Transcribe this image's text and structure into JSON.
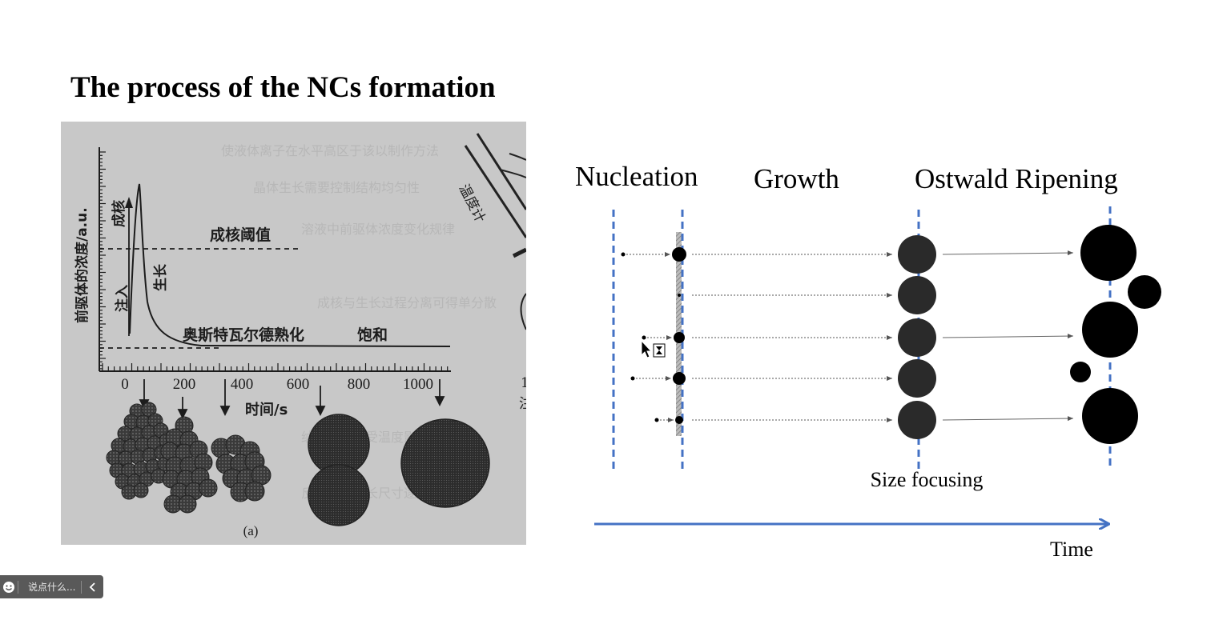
{
  "slide": {
    "title": "The process of the NCs formation"
  },
  "photo": {
    "y_axis_label": "前驱体的浓度/a.u.",
    "x_axis_label": "时间/s",
    "x_ticks": [
      "0",
      "200",
      "400",
      "600",
      "800",
      "1000"
    ],
    "threshold_label": "成核阈值",
    "nucleation_label": "成核",
    "injection_label": "注入",
    "growth_label": "生长",
    "ripening_label": "奥斯特瓦尔德熟化",
    "saturation_label": "饱和",
    "thermometer_label": "温度计",
    "caption": "(a)",
    "bg_text": [
      "使液体离子在水平高区于该以制作方法",
      "晶体生长需要控制结构均匀性",
      "溶液中前驱体浓度变化规律",
      "成核与生长过程分离可得单分散",
      "纳米晶形貌受温度影响较大",
      "反应时间延长尺寸逐渐增大"
    ],
    "side_marks": [
      "1",
      "注"
    ]
  },
  "diagram": {
    "stage_labels": [
      "Nucleation",
      "Growth",
      "Ostwald Ripening"
    ],
    "size_focusing_label": "Size focusing",
    "time_label": "Time",
    "colors": {
      "dashed_line": "#4472c4",
      "time_arrow": "#4472c4",
      "particle": "#000000"
    }
  },
  "chat": {
    "emoji_icon": "smiley-icon",
    "placeholder": "说点什么...",
    "toggle_icon": "chevron-left-icon"
  }
}
